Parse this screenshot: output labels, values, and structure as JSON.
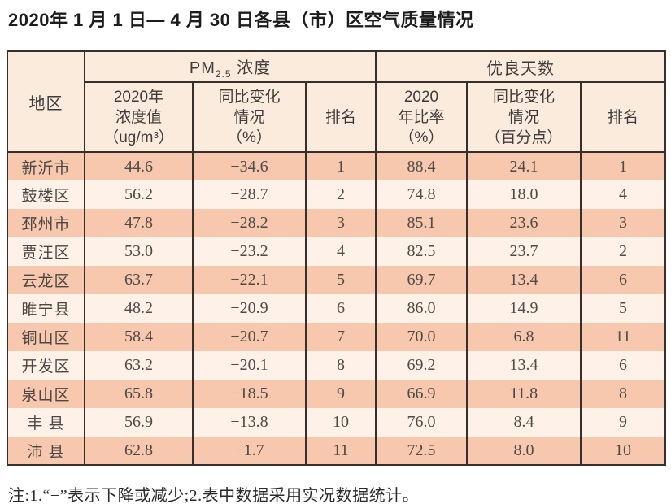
{
  "title": "2020年 1 月 1 日— 4 月 30 日各县（市）区空气质量情况",
  "table": {
    "header": {
      "region": "地区",
      "pm25_prefix": "PM",
      "pm25_sub": "2.5",
      "pm25_suffix": " 浓度",
      "good_days": "优良天数",
      "sub_headers": [
        {
          "lines": [
            "2020年",
            "浓度值",
            "（ug/m³）"
          ]
        },
        {
          "lines": [
            "同比变化",
            "情况",
            "（%）"
          ]
        },
        {
          "lines": [
            "排名"
          ]
        },
        {
          "lines": [
            "2020",
            "年比率",
            "（%）"
          ]
        },
        {
          "lines": [
            "同比变化",
            "情况",
            "（百分点）"
          ]
        },
        {
          "lines": [
            "排名"
          ]
        }
      ]
    },
    "rows": [
      {
        "region": "新沂市",
        "pm_value": "44.6",
        "pm_change": "−34.6",
        "pm_rank": "1",
        "good_rate": "88.4",
        "good_change": "24.1",
        "good_rank": "1"
      },
      {
        "region": "鼓楼区",
        "pm_value": "56.2",
        "pm_change": "−28.7",
        "pm_rank": "2",
        "good_rate": "74.8",
        "good_change": "18.0",
        "good_rank": "4"
      },
      {
        "region": "邳州市",
        "pm_value": "47.8",
        "pm_change": "−28.2",
        "pm_rank": "3",
        "good_rate": "85.1",
        "good_change": "23.6",
        "good_rank": "3"
      },
      {
        "region": "贾汪区",
        "pm_value": "53.0",
        "pm_change": "−23.2",
        "pm_rank": "4",
        "good_rate": "82.5",
        "good_change": "23.7",
        "good_rank": "2"
      },
      {
        "region": "云龙区",
        "pm_value": "63.7",
        "pm_change": "−22.1",
        "pm_rank": "5",
        "good_rate": "69.7",
        "good_change": "13.4",
        "good_rank": "6"
      },
      {
        "region": "睢宁县",
        "pm_value": "48.2",
        "pm_change": "−20.9",
        "pm_rank": "6",
        "good_rate": "86.0",
        "good_change": "14.9",
        "good_rank": "5"
      },
      {
        "region": "铜山区",
        "pm_value": "58.4",
        "pm_change": "−20.7",
        "pm_rank": "7",
        "good_rate": "70.0",
        "good_change": "6.8",
        "good_rank": "11"
      },
      {
        "region": "开发区",
        "pm_value": "63.2",
        "pm_change": "−20.1",
        "pm_rank": "8",
        "good_rate": "69.2",
        "good_change": "13.4",
        "good_rank": "6"
      },
      {
        "region": "泉山区",
        "pm_value": "65.8",
        "pm_change": "−18.5",
        "pm_rank": "9",
        "good_rate": "66.9",
        "good_change": "11.8",
        "good_rank": "8"
      },
      {
        "region": "丰 县",
        "pm_value": "56.9",
        "pm_change": "−13.8",
        "pm_rank": "10",
        "good_rate": "76.0",
        "good_change": "8.4",
        "good_rank": "9"
      },
      {
        "region": "沛 县",
        "pm_value": "62.8",
        "pm_change": "−1.7",
        "pm_rank": "11",
        "good_rate": "72.5",
        "good_change": "8.0",
        "good_rank": "10"
      }
    ]
  },
  "footnote": "注:1.“−”表示下降或减少;2.表中数据采用实况数据统计。",
  "colors": {
    "row_odd": "#f8c8ae",
    "row_even": "#fdf1e8",
    "header_bg": "#fbebdd",
    "border": "#35302c"
  }
}
